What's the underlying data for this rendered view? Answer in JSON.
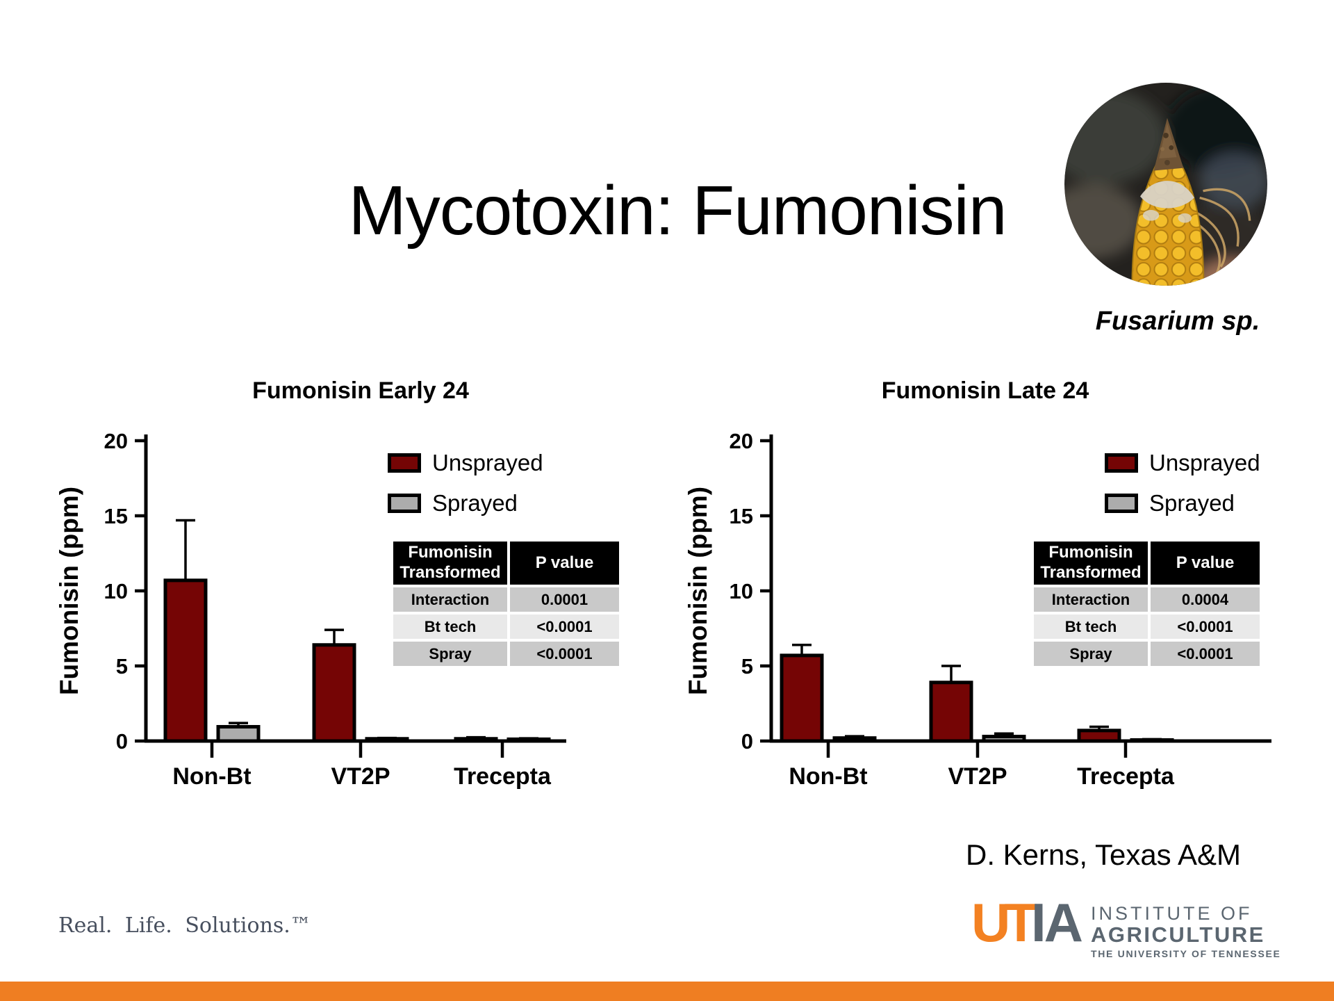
{
  "slide": {
    "title": "Mycotoxin: Fumonisin",
    "image_caption": "Fusarium sp.",
    "attribution": "D. Kerns, Texas A&M",
    "tagline": "Real. Life. Solutions.™",
    "colors": {
      "accent_orange": "#EF7E22",
      "bar_red": "#750505",
      "bar_gray": "#ACACAC",
      "tagline_gray": "#474F5E",
      "logo_orange": "#F38122",
      "logo_gray": "#5B6670"
    }
  },
  "logo": {
    "ut": "UT",
    "ia": "IA",
    "line1": "INSTITUTE OF",
    "line2": "AGRICULTURE",
    "line3": "THE UNIVERSITY OF TENNESSEE"
  },
  "chart_data": [
    {
      "type": "bar",
      "title": "Fumonisin Early 24",
      "ylabel": "Fumonisin (ppm)",
      "xlabel": "",
      "ylim": [
        0,
        20
      ],
      "yticks": [
        0,
        5,
        10,
        15,
        20
      ],
      "grid": false,
      "legend_position": "top-right",
      "categories": [
        "Non-Bt",
        "VT2P",
        "Trecepta"
      ],
      "series": [
        {
          "name": "Unsprayed",
          "color": "#750505",
          "values": [
            10.7,
            6.4,
            0.15
          ],
          "errors_upper": [
            14.7,
            7.4,
            0.25
          ]
        },
        {
          "name": "Sprayed",
          "color": "#ACACAC",
          "values": [
            0.95,
            0.15,
            0.12
          ],
          "errors_upper": [
            1.2,
            0.2,
            0.18
          ]
        }
      ],
      "stats_table": {
        "header": [
          "Fumonisin Transformed",
          "P value"
        ],
        "rows": [
          [
            "Interaction",
            "0.0001"
          ],
          [
            "Bt tech",
            "<0.0001"
          ],
          [
            "Spray",
            "<0.0001"
          ]
        ]
      }
    },
    {
      "type": "bar",
      "title": "Fumonisin Late 24",
      "ylabel": "Fumonisin (ppm)",
      "xlabel": "",
      "ylim": [
        0,
        20
      ],
      "yticks": [
        0,
        5,
        10,
        15,
        20
      ],
      "grid": false,
      "legend_position": "top-right",
      "categories": [
        "Non-Bt",
        "VT2P",
        "Trecepta"
      ],
      "series": [
        {
          "name": "Unsprayed",
          "color": "#750505",
          "values": [
            5.7,
            3.9,
            0.7
          ],
          "errors_upper": [
            6.4,
            5.0,
            0.95
          ]
        },
        {
          "name": "Sprayed",
          "color": "#ACACAC",
          "values": [
            0.2,
            0.3,
            0.07
          ],
          "errors_upper": [
            0.32,
            0.5,
            0.12
          ]
        }
      ],
      "stats_table": {
        "header": [
          "Fumonisin Transformed",
          "P value"
        ],
        "rows": [
          [
            "Interaction",
            "0.0004"
          ],
          [
            "Bt tech",
            "<0.0001"
          ],
          [
            "Spray",
            "<0.0001"
          ]
        ]
      }
    }
  ]
}
